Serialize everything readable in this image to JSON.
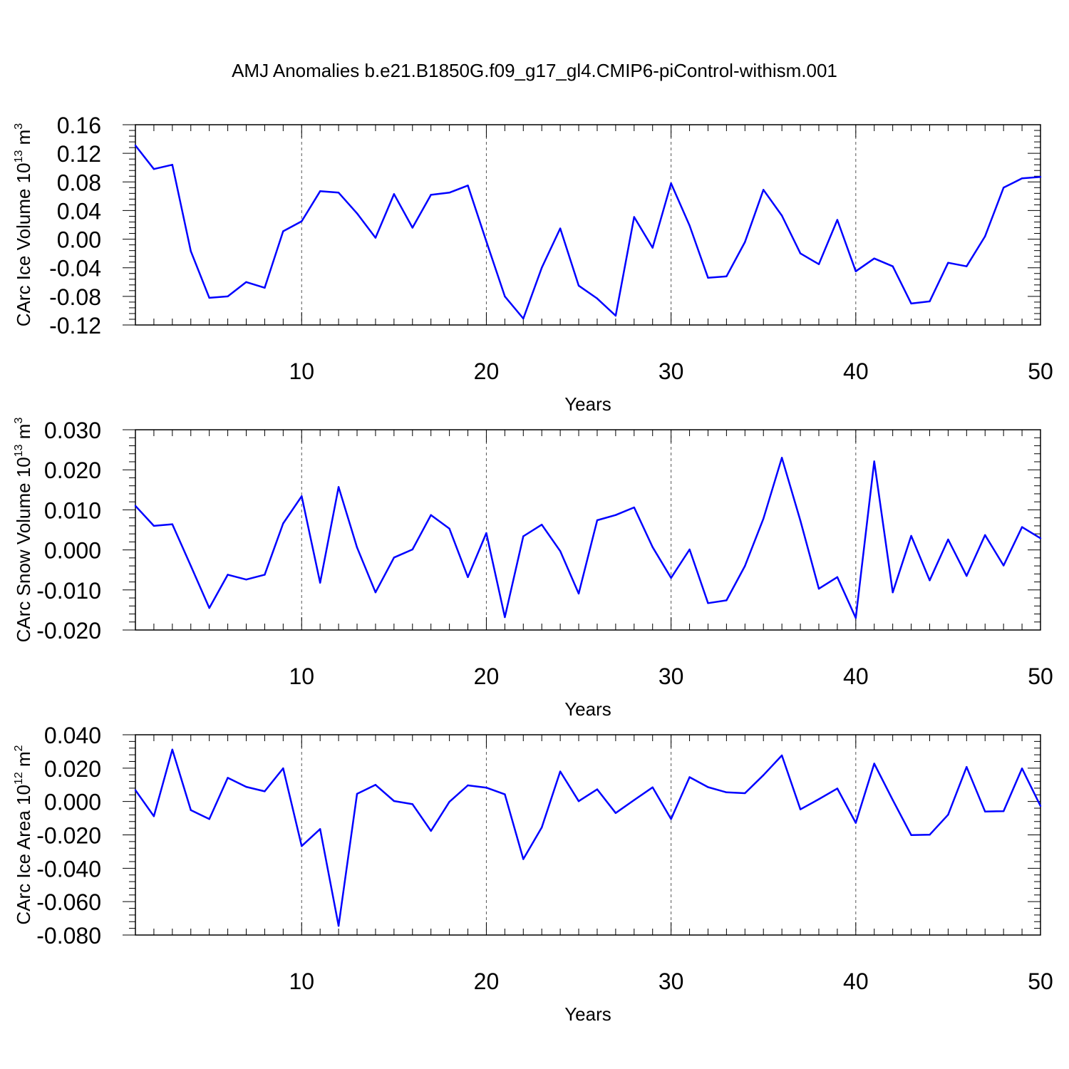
{
  "title": "AMJ Anomalies b.e21.B1850G.f09_g17_gl4.CMIP6-piControl-withism.001",
  "chart_data": [
    {
      "type": "line",
      "ylabel_main": "CArc Ice Volume 10",
      "ylabel_exp": "13",
      "ylabel_unit": " m",
      "ylabel_unit_exp": "3",
      "xlabel": "Years",
      "xlim": [
        1,
        50
      ],
      "ylim": [
        -0.12,
        0.16
      ],
      "yticks": [
        -0.12,
        -0.08,
        -0.04,
        0.0,
        0.04,
        0.08,
        0.12,
        0.16
      ],
      "ytick_labels": [
        "-0.12",
        "-0.08",
        "-0.04",
        "0.00",
        "0.04",
        "0.08",
        "0.12",
        "0.16"
      ],
      "xticks": [
        10,
        20,
        30,
        40,
        50
      ],
      "xtick_labels": [
        "10",
        "20",
        "30",
        "40",
        "50"
      ],
      "line_color": "#0000ff",
      "x": [
        1,
        2,
        3,
        4,
        5,
        6,
        7,
        8,
        9,
        10,
        11,
        12,
        13,
        14,
        15,
        16,
        17,
        18,
        19,
        20,
        21,
        22,
        23,
        24,
        25,
        26,
        27,
        28,
        29,
        30,
        31,
        32,
        33,
        34,
        35,
        36,
        37,
        38,
        39,
        40,
        41,
        42,
        43,
        44,
        45,
        46,
        47,
        48,
        49,
        50
      ],
      "values": [
        0.131,
        0.098,
        0.104,
        -0.017,
        -0.082,
        -0.08,
        -0.06,
        -0.068,
        0.011,
        0.025,
        0.067,
        0.065,
        0.036,
        0.002,
        0.063,
        0.016,
        0.062,
        0.065,
        0.075,
        -0.003,
        -0.08,
        -0.111,
        -0.04,
        0.015,
        -0.065,
        -0.083,
        -0.107,
        0.031,
        -0.012,
        0.078,
        0.019,
        -0.054,
        -0.052,
        -0.004,
        0.069,
        0.033,
        -0.02,
        -0.035,
        0.027,
        -0.045,
        -0.027,
        -0.038,
        -0.09,
        -0.087,
        -0.033,
        -0.038,
        0.004,
        0.072,
        0.085,
        0.087
      ]
    },
    {
      "type": "line",
      "ylabel_main": "CArc Snow Volume 10",
      "ylabel_exp": "13",
      "ylabel_unit": " m",
      "ylabel_unit_exp": "3",
      "xlabel": "Years",
      "xlim": [
        1,
        50
      ],
      "ylim": [
        -0.02,
        0.03
      ],
      "yticks": [
        -0.02,
        -0.01,
        0.0,
        0.01,
        0.02,
        0.03
      ],
      "ytick_labels": [
        "-0.020",
        "-0.010",
        "0.000",
        "0.010",
        "0.020",
        "0.030"
      ],
      "xticks": [
        10,
        20,
        30,
        40,
        50
      ],
      "xtick_labels": [
        "10",
        "20",
        "30",
        "40",
        "50"
      ],
      "line_color": "#0000ff",
      "x": [
        1,
        2,
        3,
        4,
        5,
        6,
        7,
        8,
        9,
        10,
        11,
        12,
        13,
        14,
        15,
        16,
        17,
        18,
        19,
        20,
        21,
        22,
        23,
        24,
        25,
        26,
        27,
        28,
        29,
        30,
        31,
        32,
        33,
        34,
        35,
        36,
        37,
        38,
        39,
        40,
        41,
        42,
        43,
        44,
        45,
        46,
        47,
        48,
        49,
        50
      ],
      "values": [
        0.011,
        0.006,
        0.0064,
        -0.004,
        -0.0145,
        -0.0062,
        -0.0074,
        -0.0062,
        0.0066,
        0.0134,
        -0.0082,
        0.0157,
        0.0006,
        -0.0106,
        -0.0019,
        0.0001,
        0.0087,
        0.0053,
        -0.0068,
        0.0042,
        -0.0168,
        0.0034,
        0.0063,
        -0.0003,
        -0.0109,
        0.0074,
        0.0087,
        0.0106,
        0.0007,
        -0.007,
        0.0001,
        -0.0133,
        -0.0126,
        -0.004,
        0.0078,
        0.023,
        0.0073,
        -0.0097,
        -0.0068,
        -0.017,
        0.0221,
        -0.0106,
        0.0035,
        -0.0076,
        0.0026,
        -0.0065,
        0.0037,
        -0.0039,
        0.0057,
        0.0029
      ]
    },
    {
      "type": "line",
      "ylabel_main": "CArc Ice Area 10",
      "ylabel_exp": "12",
      "ylabel_unit": " m",
      "ylabel_unit_exp": "2",
      "xlabel": "Years",
      "xlim": [
        1,
        50
      ],
      "ylim": [
        -0.08,
        0.04
      ],
      "yticks": [
        -0.08,
        -0.06,
        -0.04,
        -0.02,
        0.0,
        0.02,
        0.04
      ],
      "ytick_labels": [
        "-0.080",
        "-0.060",
        "-0.040",
        "-0.020",
        "0.000",
        "0.020",
        "0.040"
      ],
      "xticks": [
        10,
        20,
        30,
        40,
        50
      ],
      "xtick_labels": [
        "10",
        "20",
        "30",
        "40",
        "50"
      ],
      "line_color": "#0000ff",
      "x": [
        1,
        2,
        3,
        4,
        5,
        6,
        7,
        8,
        9,
        10,
        11,
        12,
        13,
        14,
        15,
        16,
        17,
        18,
        19,
        20,
        21,
        22,
        23,
        24,
        25,
        26,
        27,
        28,
        29,
        30,
        31,
        32,
        33,
        34,
        35,
        36,
        37,
        38,
        39,
        40,
        41,
        42,
        43,
        44,
        45,
        46,
        47,
        48,
        49,
        50
      ],
      "values": [
        0.0068,
        -0.0088,
        0.0311,
        -0.0052,
        -0.0105,
        0.0142,
        0.0088,
        0.0061,
        0.0199,
        -0.0267,
        -0.0165,
        -0.0745,
        0.0046,
        0.01,
        0.0003,
        -0.0016,
        -0.0176,
        -0.0002,
        0.0097,
        0.0083,
        0.0043,
        -0.0345,
        -0.0155,
        0.018,
        0.0002,
        0.0073,
        -0.0069,
        0.0009,
        0.0085,
        -0.0105,
        0.0146,
        0.0086,
        0.0055,
        0.005,
        0.0158,
        0.0276,
        -0.0047,
        0.0014,
        0.0078,
        -0.0128,
        0.0227,
        0.0009,
        -0.0201,
        -0.0199,
        -0.0079,
        0.0207,
        -0.006,
        -0.0058,
        0.0198,
        -0.0027
      ]
    }
  ]
}
